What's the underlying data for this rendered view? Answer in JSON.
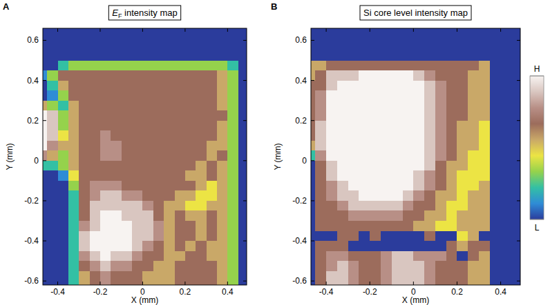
{
  "chart_data": [
    {
      "type": "heatmap",
      "panel_label": "A",
      "title": "EF intensity map",
      "xlabel": "X (mm)",
      "ylabel": "Y (mm)",
      "xlim": [
        -0.47,
        0.49
      ],
      "ylim": [
        -0.62,
        0.66
      ],
      "xticks": [
        -0.4,
        -0.2,
        0,
        0.2,
        0.4
      ],
      "yticks": [
        -0.6,
        -0.4,
        -0.2,
        0,
        0.2,
        0.4,
        0.6
      ],
      "x": [
        -0.475,
        -0.425,
        -0.375,
        -0.325,
        -0.275,
        -0.225,
        -0.175,
        -0.125,
        -0.075,
        -0.025,
        0.025,
        0.075,
        0.125,
        0.175,
        0.225,
        0.275,
        0.325,
        0.375,
        0.425,
        0.475
      ],
      "y": [
        0.625,
        0.575,
        0.525,
        0.475,
        0.425,
        0.375,
        0.325,
        0.275,
        0.225,
        0.175,
        0.125,
        0.075,
        0.025,
        -0.025,
        -0.075,
        -0.125,
        -0.175,
        -0.225,
        -0.275,
        -0.325,
        -0.375,
        -0.425,
        -0.475,
        -0.525,
        -0.575,
        -0.625
      ],
      "cells": [
        [
          0,
          0,
          0,
          0,
          0,
          0,
          0,
          0,
          0,
          0,
          0,
          0,
          0,
          0,
          0,
          0,
          0,
          0,
          0,
          0
        ],
        [
          0,
          0,
          0,
          0,
          0,
          0,
          0,
          0,
          0,
          0,
          0,
          0,
          0,
          0,
          0,
          0,
          0,
          0,
          0,
          0
        ],
        [
          0,
          0,
          0,
          0,
          0,
          0,
          0,
          0,
          0,
          0,
          0,
          0,
          0,
          0,
          0,
          0,
          0,
          0,
          0,
          0
        ],
        [
          0,
          0,
          2,
          3,
          3,
          3,
          3,
          3,
          3,
          3,
          3,
          3,
          3,
          3,
          3,
          3,
          3,
          3,
          2,
          0
        ],
        [
          1,
          3,
          6,
          6,
          6,
          6,
          6,
          6,
          6,
          6,
          6,
          6,
          6,
          6,
          6,
          6,
          6,
          5,
          3,
          0
        ],
        [
          0,
          2,
          5,
          6,
          6,
          6,
          6,
          6,
          6,
          6,
          6,
          6,
          6,
          6,
          6,
          6,
          6,
          5,
          3,
          0
        ],
        [
          0,
          1,
          3,
          6,
          6,
          6,
          6,
          6,
          6,
          6,
          6,
          6,
          6,
          6,
          6,
          6,
          6,
          5,
          3,
          0
        ],
        [
          5,
          3,
          2,
          5,
          6,
          6,
          6,
          6,
          6,
          6,
          6,
          6,
          6,
          6,
          6,
          6,
          6,
          5,
          3,
          0
        ],
        [
          9,
          8,
          3,
          5,
          6,
          6,
          6,
          6,
          6,
          6,
          6,
          6,
          6,
          6,
          6,
          6,
          6,
          6,
          3,
          0
        ],
        [
          9,
          8,
          3,
          5,
          6,
          6,
          6,
          6,
          6,
          6,
          6,
          6,
          6,
          6,
          6,
          6,
          6,
          5,
          3,
          0
        ],
        [
          9,
          8,
          4,
          5,
          6,
          6,
          7,
          6,
          6,
          6,
          6,
          6,
          6,
          6,
          6,
          6,
          6,
          5,
          3,
          0
        ],
        [
          9,
          7,
          5,
          5,
          6,
          6,
          7,
          7,
          6,
          6,
          6,
          6,
          6,
          6,
          6,
          6,
          5,
          5,
          3,
          0
        ],
        [
          7,
          5,
          3,
          5,
          6,
          6,
          7,
          7,
          6,
          6,
          6,
          6,
          6,
          6,
          6,
          6,
          5,
          6,
          3,
          0
        ],
        [
          2,
          2,
          3,
          5,
          6,
          6,
          6,
          6,
          6,
          6,
          6,
          6,
          6,
          6,
          6,
          5,
          6,
          5,
          3,
          0
        ],
        [
          0,
          0,
          1,
          4,
          6,
          6,
          6,
          6,
          6,
          6,
          6,
          6,
          6,
          6,
          5,
          5,
          6,
          5,
          3,
          0
        ],
        [
          0,
          0,
          0,
          3,
          6,
          7,
          7,
          7,
          6,
          6,
          6,
          6,
          6,
          6,
          6,
          5,
          4,
          5,
          3,
          0
        ],
        [
          0,
          0,
          0,
          2,
          6,
          7,
          8,
          8,
          7,
          7,
          6,
          6,
          6,
          5,
          5,
          4,
          4,
          5,
          3,
          0
        ],
        [
          0,
          0,
          0,
          2,
          6,
          8,
          8,
          8,
          8,
          8,
          7,
          6,
          5,
          5,
          4,
          4,
          5,
          5,
          3,
          0
        ],
        [
          0,
          0,
          0,
          2,
          6,
          8,
          9,
          9,
          8,
          8,
          8,
          6,
          5,
          6,
          5,
          5,
          6,
          5,
          3,
          0
        ],
        [
          0,
          0,
          0,
          2,
          7,
          8,
          9,
          9,
          9,
          8,
          8,
          7,
          5,
          6,
          6,
          5,
          6,
          5,
          3,
          0
        ],
        [
          0,
          0,
          0,
          2,
          8,
          9,
          9,
          9,
          9,
          8,
          8,
          7,
          5,
          6,
          6,
          5,
          6,
          5,
          3,
          0
        ],
        [
          0,
          0,
          0,
          2,
          8,
          9,
          9,
          9,
          9,
          8,
          7,
          6,
          5,
          6,
          5,
          6,
          5,
          5,
          3,
          0
        ],
        [
          0,
          0,
          0,
          2,
          7,
          8,
          9,
          8,
          8,
          7,
          6,
          6,
          5,
          5,
          6,
          6,
          5,
          5,
          3,
          0
        ],
        [
          0,
          0,
          0,
          2,
          6,
          7,
          8,
          7,
          7,
          6,
          6,
          5,
          5,
          6,
          6,
          6,
          6,
          5,
          3,
          0
        ],
        [
          0,
          0,
          0,
          2,
          5,
          6,
          7,
          6,
          6,
          6,
          5,
          5,
          5,
          6,
          6,
          6,
          6,
          5,
          3,
          0
        ],
        [
          0,
          0,
          0,
          2,
          5,
          6,
          7,
          6,
          6,
          6,
          5,
          5,
          5,
          6,
          6,
          6,
          6,
          5,
          3,
          0
        ]
      ]
    },
    {
      "type": "heatmap",
      "panel_label": "B",
      "title": "Si core level intensity map",
      "xlabel": "X (mm)",
      "ylabel": "Y (mm)",
      "xlim": [
        -0.47,
        0.49
      ],
      "ylim": [
        -0.62,
        0.66
      ],
      "xticks": [
        -0.4,
        -0.2,
        0,
        0.2,
        0.4
      ],
      "yticks": [
        -0.6,
        -0.4,
        -0.2,
        0,
        0.2,
        0.4,
        0.6
      ],
      "x": [
        -0.475,
        -0.425,
        -0.375,
        -0.325,
        -0.275,
        -0.225,
        -0.175,
        -0.125,
        -0.075,
        -0.025,
        0.025,
        0.075,
        0.125,
        0.175,
        0.225,
        0.275,
        0.325,
        0.375,
        0.425,
        0.475
      ],
      "y": [
        0.625,
        0.575,
        0.525,
        0.475,
        0.425,
        0.375,
        0.325,
        0.275,
        0.225,
        0.175,
        0.125,
        0.075,
        0.025,
        -0.025,
        -0.075,
        -0.125,
        -0.175,
        -0.225,
        -0.275,
        -0.325,
        -0.375,
        -0.425,
        -0.475,
        -0.525,
        -0.575,
        -0.625
      ],
      "cells": [
        [
          0,
          0,
          0,
          0,
          0,
          0,
          0,
          0,
          0,
          0,
          0,
          0,
          0,
          0,
          0,
          0,
          0,
          0,
          0,
          0
        ],
        [
          0,
          0,
          0,
          0,
          0,
          0,
          0,
          0,
          0,
          0,
          0,
          0,
          0,
          0,
          0,
          0,
          0,
          0,
          0,
          0
        ],
        [
          0,
          0,
          0,
          0,
          0,
          0,
          0,
          0,
          0,
          0,
          0,
          0,
          0,
          0,
          0,
          0,
          0,
          0,
          0,
          0
        ],
        [
          5,
          5,
          6,
          6,
          6,
          6,
          6,
          6,
          6,
          6,
          6,
          6,
          6,
          6,
          6,
          6,
          5,
          0,
          0,
          0
        ],
        [
          5,
          6,
          8,
          8,
          8,
          9,
          9,
          9,
          9,
          9,
          8,
          7,
          6,
          6,
          6,
          5,
          5,
          0,
          0,
          0
        ],
        [
          6,
          6,
          8,
          9,
          9,
          9,
          9,
          9,
          9,
          9,
          9,
          8,
          7,
          6,
          6,
          5,
          5,
          0,
          0,
          0
        ],
        [
          6,
          7,
          9,
          9,
          9,
          9,
          9,
          9,
          9,
          9,
          9,
          8,
          7,
          6,
          6,
          5,
          5,
          0,
          0,
          0
        ],
        [
          6,
          7,
          9,
          9,
          9,
          9,
          9,
          9,
          9,
          9,
          9,
          8,
          7,
          6,
          6,
          5,
          5,
          0,
          0,
          0
        ],
        [
          6,
          7,
          9,
          9,
          9,
          9,
          9,
          9,
          9,
          9,
          9,
          8,
          7,
          6,
          6,
          5,
          5,
          0,
          0,
          0
        ],
        [
          6,
          8,
          9,
          9,
          9,
          9,
          9,
          9,
          9,
          9,
          9,
          8,
          7,
          6,
          5,
          5,
          4,
          0,
          0,
          0
        ],
        [
          6,
          8,
          9,
          9,
          9,
          9,
          9,
          9,
          9,
          9,
          9,
          8,
          7,
          6,
          5,
          5,
          4,
          0,
          0,
          0
        ],
        [
          5,
          8,
          9,
          9,
          9,
          9,
          9,
          9,
          9,
          9,
          9,
          8,
          7,
          6,
          5,
          5,
          4,
          0,
          0,
          0
        ],
        [
          2,
          7,
          9,
          9,
          9,
          9,
          9,
          9,
          9,
          9,
          9,
          8,
          7,
          6,
          5,
          4,
          4,
          0,
          0,
          0
        ],
        [
          0,
          6,
          8,
          9,
          9,
          9,
          9,
          9,
          9,
          9,
          9,
          8,
          6,
          5,
          5,
          4,
          4,
          0,
          0,
          0
        ],
        [
          0,
          6,
          8,
          9,
          9,
          9,
          9,
          9,
          9,
          9,
          8,
          7,
          6,
          5,
          4,
          4,
          4,
          0,
          0,
          0
        ],
        [
          0,
          6,
          7,
          8,
          9,
          9,
          9,
          9,
          9,
          9,
          8,
          7,
          6,
          5,
          4,
          4,
          5,
          0,
          0,
          0
        ],
        [
          0,
          6,
          7,
          8,
          8,
          9,
          9,
          9,
          9,
          8,
          7,
          6,
          5,
          5,
          4,
          5,
          5,
          0,
          0,
          0
        ],
        [
          0,
          6,
          6,
          7,
          8,
          8,
          8,
          8,
          8,
          7,
          6,
          6,
          5,
          4,
          4,
          5,
          5,
          0,
          0,
          0
        ],
        [
          0,
          6,
          6,
          6,
          7,
          7,
          7,
          7,
          7,
          6,
          6,
          5,
          5,
          4,
          5,
          5,
          5,
          0,
          0,
          0
        ],
        [
          0,
          6,
          6,
          6,
          6,
          6,
          6,
          6,
          6,
          6,
          5,
          5,
          4,
          4,
          5,
          5,
          5,
          0,
          0,
          0
        ],
        [
          0,
          0,
          0,
          6,
          6,
          0,
          6,
          0,
          0,
          0,
          0,
          6,
          0,
          0,
          4,
          5,
          0,
          0,
          0,
          0
        ],
        [
          0,
          6,
          6,
          6,
          0,
          0,
          0,
          0,
          0,
          0,
          0,
          0,
          0,
          6,
          5,
          6,
          6,
          0,
          0,
          0
        ],
        [
          0,
          6,
          7,
          7,
          6,
          6,
          6,
          7,
          8,
          8,
          7,
          7,
          7,
          6,
          0,
          6,
          5,
          0,
          0,
          0
        ],
        [
          0,
          6,
          7,
          8,
          7,
          6,
          6,
          7,
          8,
          8,
          8,
          7,
          6,
          6,
          6,
          5,
          5,
          0,
          0,
          0
        ],
        [
          0,
          6,
          8,
          8,
          7,
          6,
          6,
          7,
          8,
          8,
          8,
          7,
          6,
          6,
          6,
          5,
          5,
          0,
          0,
          0
        ],
        [
          0,
          6,
          8,
          8,
          7,
          6,
          6,
          7,
          8,
          8,
          8,
          7,
          6,
          6,
          6,
          5,
          5,
          0,
          0,
          0
        ]
      ],
      "colorbar": {
        "range": [
          0,
          9
        ],
        "ticks": [
          {
            "value": 0,
            "label": "L"
          },
          {
            "value": 9,
            "label": "H"
          }
        ]
      }
    }
  ]
}
